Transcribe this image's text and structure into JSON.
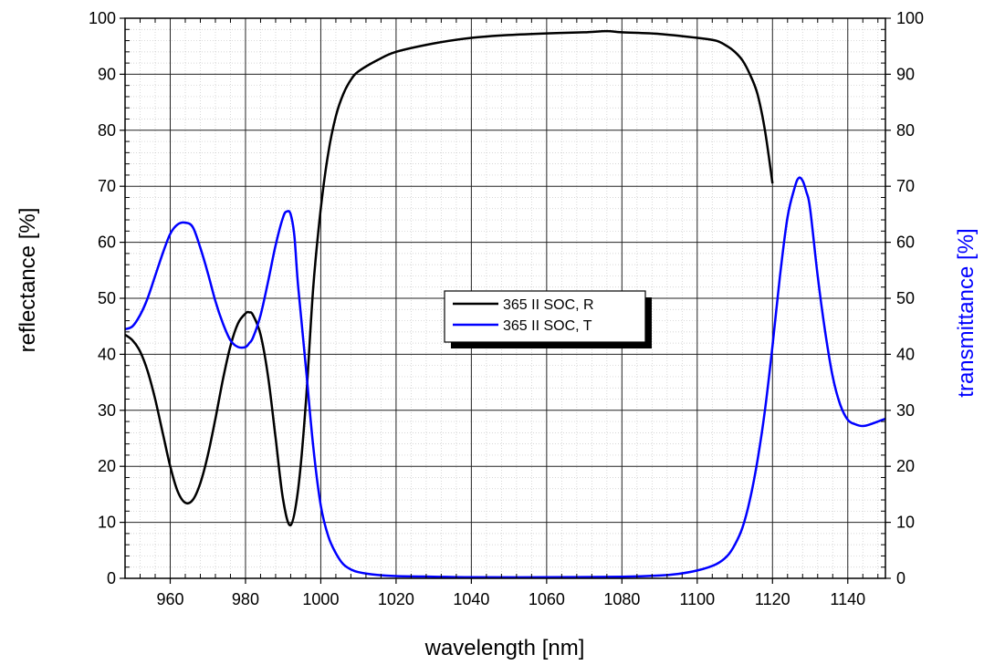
{
  "chart_data": {
    "type": "line",
    "xlabel": "wavelength [nm]",
    "ylabel": "reflectance [%]",
    "y2label": "transmittance [%]",
    "xlim": [
      948,
      1150
    ],
    "ylim": [
      0,
      100
    ],
    "y2lim": [
      0,
      100
    ],
    "x_ticks": [
      960,
      980,
      1000,
      1020,
      1040,
      1060,
      1080,
      1100,
      1120,
      1140
    ],
    "y_ticks": [
      0,
      10,
      20,
      30,
      40,
      50,
      60,
      70,
      80,
      90,
      100
    ],
    "grid": true,
    "legend_position": "center",
    "colors": {
      "reflectance": "#000000",
      "transmittance": "#0000ff",
      "y2label": "#0000ff"
    },
    "series": [
      {
        "name": "365 II SOC, R",
        "axis": "left",
        "x": [
          948,
          950,
          952,
          954,
          956,
          958,
          960,
          962,
          964,
          966,
          968,
          970,
          972,
          974,
          976,
          978,
          980,
          981,
          982,
          984,
          986,
          988,
          990,
          992,
          994,
          996,
          998,
          1000,
          1002,
          1004,
          1006,
          1008,
          1010,
          1015,
          1020,
          1030,
          1040,
          1050,
          1060,
          1070,
          1076,
          1080,
          1090,
          1100,
          1105,
          1108,
          1110,
          1112,
          1114,
          1116,
          1118,
          1120
        ],
        "y": [
          43.5,
          42.5,
          40.5,
          37,
          32,
          26,
          20,
          15.5,
          13.5,
          14,
          17,
          22,
          28.5,
          35.5,
          41.5,
          45.5,
          47.3,
          47.5,
          47,
          43.5,
          36,
          25,
          14,
          9.5,
          16,
          31,
          52,
          66,
          76,
          82.5,
          86.5,
          89,
          90.5,
          92.5,
          94,
          95.5,
          96.5,
          97,
          97.3,
          97.5,
          97.7,
          97.5,
          97.2,
          96.5,
          96,
          95,
          94,
          92.5,
          90,
          86.5,
          80,
          70.5
        ]
      },
      {
        "name": "365 II SOC, T",
        "axis": "right",
        "x": [
          948,
          950,
          952,
          954,
          956,
          958,
          960,
          962,
          964,
          966,
          968,
          970,
          972,
          974,
          976,
          978,
          980,
          981,
          982,
          984,
          986,
          988,
          990,
          991,
          992,
          993,
          994,
          996,
          998,
          1000,
          1002,
          1004,
          1006,
          1008,
          1010,
          1015,
          1020,
          1030,
          1040,
          1060,
          1080,
          1090,
          1095,
          1100,
          1105,
          1108,
          1110,
          1112,
          1114,
          1116,
          1118,
          1120,
          1122,
          1124,
          1126,
          1127,
          1128,
          1129,
          1130,
          1132,
          1134,
          1136,
          1138,
          1140,
          1142,
          1144,
          1146,
          1148,
          1150
        ],
        "y": [
          44.5,
          45,
          47,
          50,
          54,
          58,
          61.5,
          63.2,
          63.5,
          62.7,
          59,
          54.5,
          49.5,
          45.5,
          42.5,
          41.3,
          41.3,
          42,
          43,
          47,
          53,
          59.5,
          64.5,
          65.5,
          65,
          61,
          52,
          38,
          23.5,
          13,
          7.5,
          4.5,
          2.5,
          1.6,
          1.1,
          0.6,
          0.4,
          0.3,
          0.2,
          0.2,
          0.3,
          0.5,
          0.8,
          1.4,
          2.5,
          4,
          6,
          9,
          14,
          21,
          30,
          41.5,
          54,
          64.5,
          70,
          71.5,
          71,
          69,
          66,
          54,
          44,
          36,
          31,
          28.3,
          27.5,
          27.2,
          27.5,
          28,
          28.5
        ]
      }
    ]
  }
}
